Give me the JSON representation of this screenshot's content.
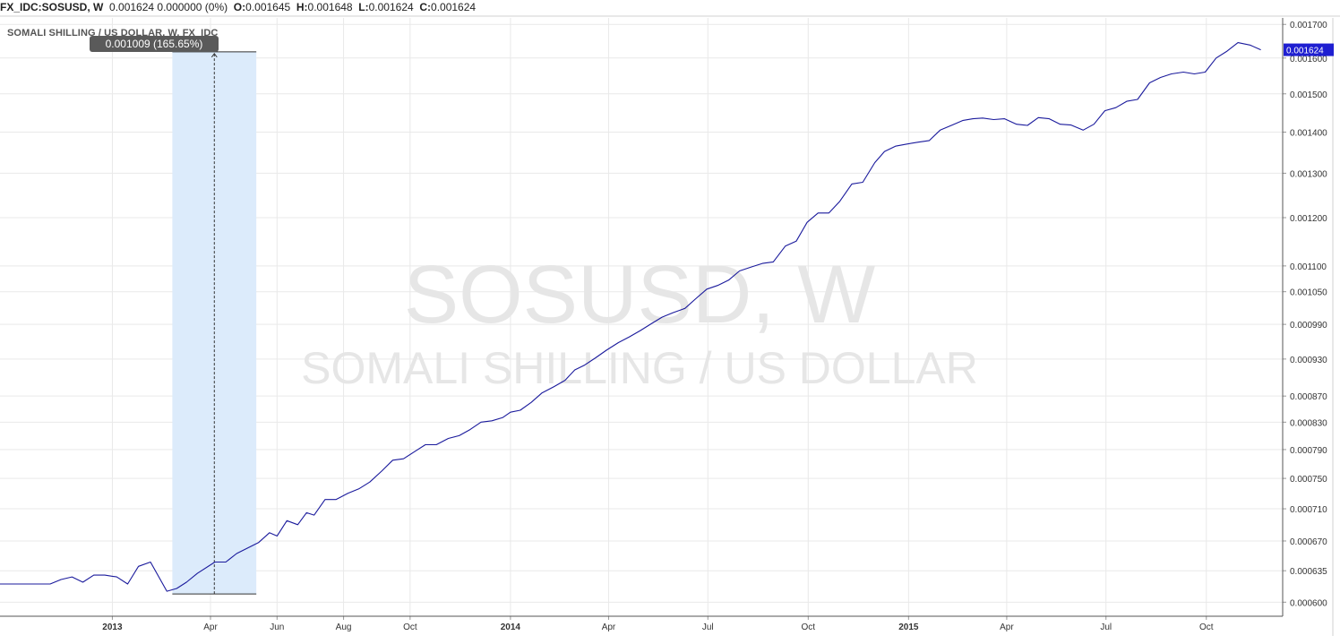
{
  "header": {
    "symbol": "FX_IDC:SOSUSD, W",
    "change": "0.001624 0.000000 (0%)",
    "o_label": "O:",
    "o_value": "0.001645",
    "h_label": "H:",
    "h_value": "0.001648",
    "l_label": "L:",
    "l_value": "0.001624",
    "c_label": "C:",
    "c_value": "0.001624"
  },
  "symbol_label": "SOMALI SHILLING / US DOLLAR, W, FX_IDC",
  "watermark": {
    "ticker": "SOSUSD, W",
    "name": "SOMALI SHILLING / US DOLLAR"
  },
  "measure": {
    "label": "0.001009 (165.65%)"
  },
  "last_price": {
    "label": "0.001624",
    "color": "#1f1fd1"
  },
  "colors": {
    "line": "#1a1a9c",
    "grid": "#e9e9e9",
    "measure_fill": "#dcebfb",
    "axis_text": "#333333",
    "watermark": "#e6e6e6"
  },
  "chart_data": {
    "type": "line",
    "title": "",
    "xlabel": "",
    "ylabel": "",
    "y_scale": "log",
    "ylim": [
      0.000585,
      0.00172
    ],
    "xlim": [
      "2012-09-20",
      "2015-12-10"
    ],
    "grid": true,
    "x_tick_labels": [
      {
        "date": "2013-01-01",
        "label": "2013",
        "bold": true
      },
      {
        "date": "2013-04-01",
        "label": "Apr"
      },
      {
        "date": "2013-06-01",
        "label": "Jun"
      },
      {
        "date": "2013-08-01",
        "label": "Aug"
      },
      {
        "date": "2013-10-01",
        "label": "Oct"
      },
      {
        "date": "2014-01-01",
        "label": "2014",
        "bold": true
      },
      {
        "date": "2014-04-01",
        "label": "Apr"
      },
      {
        "date": "2014-07-01",
        "label": "Jul"
      },
      {
        "date": "2014-10-01",
        "label": "Oct"
      },
      {
        "date": "2015-01-01",
        "label": "2015",
        "bold": true
      },
      {
        "date": "2015-04-01",
        "label": "Apr"
      },
      {
        "date": "2015-07-01",
        "label": "Jul"
      },
      {
        "date": "2015-10-01",
        "label": "Oct"
      }
    ],
    "y_ticks": [
      0.0006,
      0.000635,
      0.00067,
      0.00071,
      0.00075,
      0.00079,
      0.00083,
      0.00087,
      0.00093,
      0.00099,
      0.00105,
      0.0011,
      0.0012,
      0.0013,
      0.0014,
      0.0015,
      0.0016,
      0.0017
    ],
    "y_tick_labels": [
      "0.000600",
      "0.000635",
      "0.000670",
      "0.000710",
      "0.000750",
      "0.000790",
      "0.000830",
      "0.000870",
      "0.000930",
      "0.000990",
      "0.001050",
      "0.001100",
      "0.001200",
      "0.001300",
      "0.001400",
      "0.001500",
      "0.001600",
      "0.001700"
    ],
    "measure_range": {
      "x_start": "2013-02-25",
      "x_end": "2013-05-13",
      "y_low": 0.000609,
      "y_high": 0.001618
    },
    "series": [
      {
        "points": [
          [
            "2012-09-20",
            0.00062
          ],
          [
            "2012-10-15",
            0.00062
          ],
          [
            "2012-11-05",
            0.00062
          ],
          [
            "2012-11-15",
            0.000625
          ],
          [
            "2012-11-25",
            0.000628
          ],
          [
            "2012-12-05",
            0.000622
          ],
          [
            "2012-12-15",
            0.00063
          ],
          [
            "2012-12-25",
            0.00063
          ],
          [
            "2013-01-05",
            0.000628
          ],
          [
            "2013-01-15",
            0.00062
          ],
          [
            "2013-01-25",
            0.00064
          ],
          [
            "2013-02-05",
            0.000645
          ],
          [
            "2013-02-20",
            0.000612
          ],
          [
            "2013-03-01",
            0.000615
          ],
          [
            "2013-03-10",
            0.000622
          ],
          [
            "2013-03-20",
            0.000632
          ],
          [
            "2013-04-05",
            0.000645
          ],
          [
            "2013-04-15",
            0.000645
          ],
          [
            "2013-04-25",
            0.000655
          ],
          [
            "2013-05-15",
            0.000668
          ],
          [
            "2013-05-25",
            0.00068
          ],
          [
            "2013-06-01",
            0.000676
          ],
          [
            "2013-06-10",
            0.000695
          ],
          [
            "2013-06-20",
            0.00069
          ],
          [
            "2013-06-28",
            0.000705
          ],
          [
            "2013-07-05",
            0.000702
          ],
          [
            "2013-07-15",
            0.000722
          ],
          [
            "2013-07-25",
            0.000722
          ],
          [
            "2013-08-05",
            0.00073
          ],
          [
            "2013-08-15",
            0.000736
          ],
          [
            "2013-08-25",
            0.000745
          ],
          [
            "2013-09-05",
            0.00076
          ],
          [
            "2013-09-15",
            0.000775
          ],
          [
            "2013-09-25",
            0.000777
          ],
          [
            "2013-10-05",
            0.000787
          ],
          [
            "2013-10-15",
            0.000797
          ],
          [
            "2013-10-25",
            0.000797
          ],
          [
            "2013-11-05",
            0.000806
          ],
          [
            "2013-11-15",
            0.00081
          ],
          [
            "2013-11-25",
            0.000819
          ],
          [
            "2013-12-05",
            0.00083
          ],
          [
            "2013-12-15",
            0.000832
          ],
          [
            "2013-12-25",
            0.000837
          ],
          [
            "2014-01-01",
            0.000845
          ],
          [
            "2014-01-10",
            0.000848
          ],
          [
            "2014-01-20",
            0.00086
          ],
          [
            "2014-01-30",
            0.000875
          ],
          [
            "2014-02-10",
            0.000885
          ],
          [
            "2014-02-20",
            0.000895
          ],
          [
            "2014-03-01",
            0.000912
          ],
          [
            "2014-03-10",
            0.00092
          ],
          [
            "2014-03-20",
            0.000932
          ],
          [
            "2014-03-30",
            0.000945
          ],
          [
            "2014-04-10",
            0.000958
          ],
          [
            "2014-04-20",
            0.000968
          ],
          [
            "2014-04-30",
            0.000979
          ],
          [
            "2014-05-10",
            0.000991
          ],
          [
            "2014-05-20",
            0.001003
          ],
          [
            "2014-05-30",
            0.001011
          ],
          [
            "2014-06-10",
            0.001019
          ],
          [
            "2014-06-20",
            0.001037
          ],
          [
            "2014-06-30",
            0.001055
          ],
          [
            "2014-07-10",
            0.001062
          ],
          [
            "2014-07-20",
            0.001072
          ],
          [
            "2014-07-30",
            0.00109
          ],
          [
            "2014-08-10",
            0.001098
          ],
          [
            "2014-08-20",
            0.001105
          ],
          [
            "2014-08-30",
            0.001108
          ],
          [
            "2014-09-10",
            0.00114
          ],
          [
            "2014-09-20",
            0.00115
          ],
          [
            "2014-09-30",
            0.00119
          ],
          [
            "2014-10-10",
            0.00121
          ],
          [
            "2014-10-20",
            0.00121
          ],
          [
            "2014-10-30",
            0.001236
          ],
          [
            "2014-11-10",
            0.001275
          ],
          [
            "2014-11-20",
            0.001279
          ],
          [
            "2014-12-01",
            0.001325
          ],
          [
            "2014-12-10",
            0.001352
          ],
          [
            "2014-12-20",
            0.001365
          ],
          [
            "2014-12-30",
            0.00137
          ],
          [
            "2015-01-10",
            0.001375
          ],
          [
            "2015-01-20",
            0.001379
          ],
          [
            "2015-01-30",
            0.001405
          ],
          [
            "2015-02-10",
            0.001418
          ],
          [
            "2015-02-20",
            0.00143
          ],
          [
            "2015-03-01",
            0.001434
          ],
          [
            "2015-03-10",
            0.001436
          ],
          [
            "2015-03-20",
            0.001432
          ],
          [
            "2015-03-30",
            0.001434
          ],
          [
            "2015-04-10",
            0.00142
          ],
          [
            "2015-04-20",
            0.001417
          ],
          [
            "2015-04-30",
            0.001437
          ],
          [
            "2015-05-10",
            0.001434
          ],
          [
            "2015-05-20",
            0.00142
          ],
          [
            "2015-05-30",
            0.001418
          ],
          [
            "2015-06-10",
            0.001405
          ],
          [
            "2015-06-20",
            0.00142
          ],
          [
            "2015-06-30",
            0.001455
          ],
          [
            "2015-07-10",
            0.001463
          ],
          [
            "2015-07-20",
            0.00148
          ],
          [
            "2015-07-30",
            0.001485
          ],
          [
            "2015-08-10",
            0.00153
          ],
          [
            "2015-08-20",
            0.001545
          ],
          [
            "2015-08-30",
            0.001555
          ],
          [
            "2015-09-10",
            0.00156
          ],
          [
            "2015-09-20",
            0.001555
          ],
          [
            "2015-09-30",
            0.00156
          ],
          [
            "2015-10-10",
            0.0016
          ],
          [
            "2015-10-20",
            0.00162
          ],
          [
            "2015-10-30",
            0.001645
          ],
          [
            "2015-11-10",
            0.001638
          ],
          [
            "2015-11-20",
            0.001624
          ]
        ]
      }
    ]
  }
}
